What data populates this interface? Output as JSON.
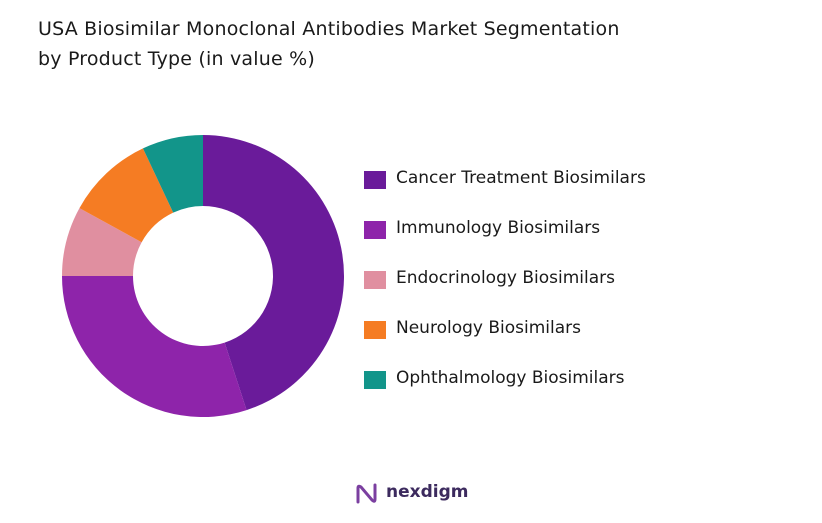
{
  "title": "USA  Biosimilar Monoclonal Antibodies  Market Segmentation\nby Product Type (in value %)",
  "chart_data": {
    "type": "pie",
    "donut": true,
    "categories": [
      "Cancer Treatment Biosimilars",
      "Immunology Biosimilars",
      "Endocrinology Biosimilars",
      "Neurology Biosimilars",
      "Ophthalmology Biosimilars"
    ],
    "values": [
      45,
      30,
      8,
      10,
      7
    ],
    "colors": [
      "#6a1b9a",
      "#8e24aa",
      "#e08fa0",
      "#f57c23",
      "#12958a"
    ],
    "legend_position": "right"
  },
  "brand": {
    "name": "nexdigm",
    "color": "#3c2a5e"
  }
}
